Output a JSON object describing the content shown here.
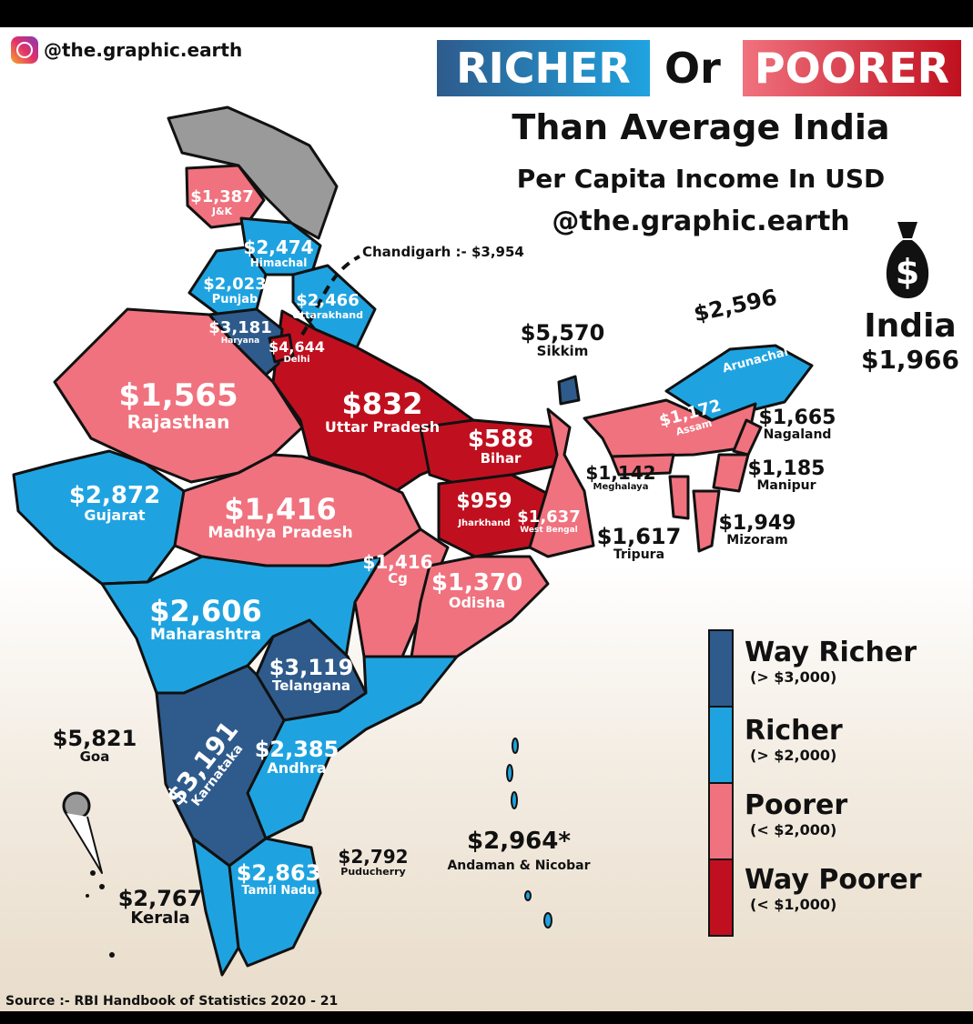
{
  "header": {
    "handle": "@the.graphic.earth",
    "title_richer": "RICHER",
    "title_or": "Or",
    "title_poorer": "POORER",
    "subtitle": "Than Average India",
    "metric": "Per Capita Income In USD",
    "credit": "@the.graphic.earth"
  },
  "national": {
    "name": "India",
    "value": "$1,966",
    "icon": "money-bag-icon"
  },
  "colors": {
    "way_richer": "#2e5b8c",
    "richer": "#1fa3e0",
    "poorer": "#f0727e",
    "way_poorer": "#c0101f",
    "no_data": "#9a9a9a"
  },
  "regions": {
    "jk": {
      "name": "J&K",
      "value": "$1,387",
      "category": "poorer"
    },
    "himachal": {
      "name": "Himachal",
      "value": "$2,474",
      "category": "richer"
    },
    "chandigarh": {
      "name": "Chandigarh :-",
      "value": "$3,954",
      "category": "way_richer"
    },
    "punjab": {
      "name": "Punjab",
      "value": "$2,023",
      "category": "richer"
    },
    "uttarakhand": {
      "name": "Uttarakhand",
      "value": "$2,466",
      "category": "richer"
    },
    "haryana": {
      "name": "Haryana",
      "value": "$3,181",
      "category": "way_richer"
    },
    "delhi": {
      "name": "Delhi",
      "value": "$4,644",
      "category": "way_richer"
    },
    "rajasthan": {
      "name": "Rajasthan",
      "value": "$1,565",
      "category": "poorer"
    },
    "up": {
      "name": "Uttar Pradesh",
      "value": "$832",
      "category": "way_poorer"
    },
    "bihar": {
      "name": "Bihar",
      "value": "$588",
      "category": "way_poorer"
    },
    "sikkim": {
      "name": "Sikkim",
      "value": "$5,570",
      "category": "way_richer"
    },
    "arunachal": {
      "name": "Arunachal",
      "value": "$2,596",
      "category": "richer"
    },
    "assam": {
      "name": "Assam",
      "value": "$1,172",
      "category": "poorer"
    },
    "nagaland": {
      "name": "Nagaland",
      "value": "$1,665",
      "category": "poorer"
    },
    "manipur": {
      "name": "Manipur",
      "value": "$1,185",
      "category": "poorer"
    },
    "mizoram": {
      "name": "Mizoram",
      "value": "$1,949",
      "category": "poorer"
    },
    "meghalaya": {
      "name": "Meghalaya",
      "value": "$1,142",
      "category": "poorer"
    },
    "tripura": {
      "name": "Tripura",
      "value": "$1,617",
      "category": "poorer"
    },
    "gujarat": {
      "name": "Gujarat",
      "value": "$2,872",
      "category": "richer"
    },
    "mp": {
      "name": "Madhya Pradesh",
      "value": "$1,416",
      "category": "poorer"
    },
    "jharkhand": {
      "name": "Jharkhand",
      "value": "$959",
      "category": "way_poorer"
    },
    "wb": {
      "name": "West Bengal",
      "value": "$1,637",
      "category": "poorer"
    },
    "cg": {
      "name": "Cg",
      "value": "$1,416",
      "category": "poorer"
    },
    "odisha": {
      "name": "Odisha",
      "value": "$1,370",
      "category": "poorer"
    },
    "maharashtra": {
      "name": "Maharashtra",
      "value": "$2,606",
      "category": "richer"
    },
    "telangana": {
      "name": "Telangana",
      "value": "$3,119",
      "category": "way_richer"
    },
    "goa": {
      "name": "Goa",
      "value": "$5,821",
      "category": "way_richer"
    },
    "karnataka": {
      "name": "Karnataka",
      "value": "$3,191",
      "category": "way_richer"
    },
    "andhra": {
      "name": "Andhra",
      "value": "$2,385",
      "category": "richer"
    },
    "puducherry": {
      "name": "Puducherry",
      "value": "$2,792",
      "category": "richer"
    },
    "andaman": {
      "name": "Andaman & Nicobar",
      "value": "$2,964*",
      "category": "richer"
    },
    "tn": {
      "name": "Tamil Nadu",
      "value": "$2,863",
      "category": "richer"
    },
    "kerala": {
      "name": "Kerala",
      "value": "$2,767",
      "category": "richer"
    }
  },
  "legend": [
    {
      "label": "Way Richer",
      "range": "(> $3,000)"
    },
    {
      "label": "Richer",
      "range": "(> $2,000)"
    },
    {
      "label": "Poorer",
      "range": "(< $2,000)"
    },
    {
      "label": "Way Poorer",
      "range": "(< $1,000)"
    }
  ],
  "source": "Source :- RBI Handbook of Statistics 2020 - 21"
}
